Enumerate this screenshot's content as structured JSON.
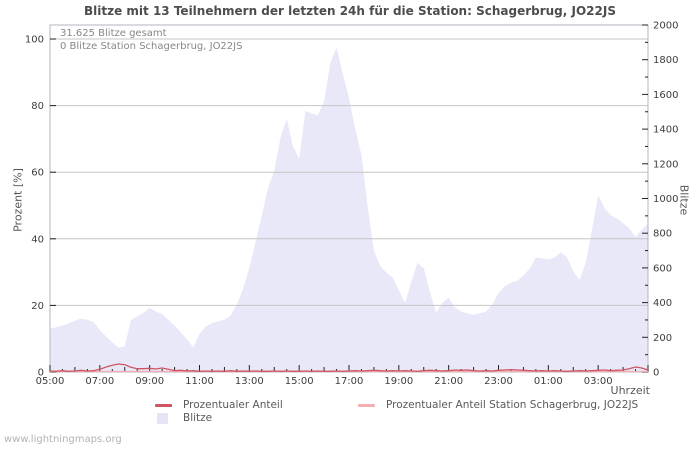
{
  "page": {
    "watermark": "www.lightningmaps.org"
  },
  "chart_data": {
    "type": "area",
    "title": "Blitze mit 13 Teilnehmern der letzten 24h für die Station: Schagerbrug, JO22JS",
    "annotations": [
      "31.625 Blitze gesamt",
      "0 Blitze Station Schagerbrug, JO22JS"
    ],
    "x_axis_label": "Uhrzeit",
    "x_start": "05:00",
    "x_interval_min": 15,
    "x_tick_labels": [
      "05:00",
      "07:00",
      "09:00",
      "11:00",
      "13:00",
      "15:00",
      "17:00",
      "19:00",
      "21:00",
      "23:00",
      "01:00",
      "03:00"
    ],
    "y_left": {
      "label": "Prozent  [%]",
      "range": [
        0,
        100
      ],
      "ticks": [
        0,
        20,
        40,
        60,
        80,
        100
      ]
    },
    "y_right": {
      "label": "Blitze",
      "range": [
        0,
        2000
      ],
      "ticks": [
        0,
        200,
        400,
        600,
        800,
        1000,
        1200,
        1400,
        1600,
        1800,
        2000
      ],
      "minor_step": 100
    },
    "grid": "horizontal-only",
    "legend_position": "bottom-center",
    "colors": {
      "grid": "#c6c6c6",
      "frame": "#b3b3bf",
      "tick_text": "#3d3d3d",
      "axis_tick": "#222222"
    },
    "series": [
      {
        "name": "Blitze",
        "type": "area",
        "axis": "right",
        "color": "#e8e8f8",
        "values": [
          250,
          258,
          268,
          280,
          295,
          308,
          300,
          288,
          242,
          205,
          172,
          140,
          148,
          300,
          320,
          342,
          370,
          348,
          335,
          300,
          268,
          228,
          188,
          142,
          220,
          262,
          282,
          292,
          302,
          325,
          390,
          480,
          600,
          750,
          905,
          1060,
          1160,
          1350,
          1460,
          1300,
          1230,
          1505,
          1490,
          1480,
          1560,
          1780,
          1870,
          1720,
          1580,
          1400,
          1250,
          950,
          700,
          612,
          572,
          545,
          472,
          398,
          520,
          630,
          598,
          460,
          342,
          400,
          428,
          372,
          348,
          338,
          330,
          338,
          348,
          390,
          455,
          495,
          515,
          525,
          555,
          595,
          660,
          655,
          650,
          660,
          690,
          662,
          580,
          532,
          628,
          818,
          1020,
          945,
          903,
          886,
          857,
          828,
          780,
          820,
          858
        ]
      },
      {
        "name": "Prozentualer Anteil",
        "type": "line",
        "axis": "left",
        "color": "#cf5560",
        "values": [
          0.3,
          0.2,
          0.4,
          0.2,
          0.3,
          0.5,
          0.3,
          0.4,
          0.8,
          1.5,
          2.0,
          2.4,
          2.2,
          1.4,
          1.0,
          1.0,
          1.1,
          0.9,
          1.2,
          0.8,
          0.4,
          0.5,
          0.3,
          0.4,
          0.2,
          0.3,
          0.2,
          0.3,
          0.2,
          0.4,
          0.2,
          0.3,
          0.2,
          0.3,
          0.2,
          0.2,
          0.3,
          0.2,
          0.3,
          0.2,
          0.2,
          0.3,
          0.2,
          0.3,
          0.2,
          0.2,
          0.3,
          0.2,
          0.3,
          0.4,
          0.3,
          0.4,
          0.5,
          0.4,
          0.3,
          0.4,
          0.3,
          0.4,
          0.3,
          0.2,
          0.4,
          0.5,
          0.4,
          0.3,
          0.4,
          0.6,
          0.5,
          0.6,
          0.4,
          0.3,
          0.4,
          0.3,
          0.5,
          0.6,
          0.7,
          0.6,
          0.5,
          0.4,
          0.3,
          0.4,
          0.3,
          0.4,
          0.3,
          0.2,
          0.3,
          0.4,
          0.3,
          0.4,
          0.5,
          0.6,
          0.4,
          0.5,
          0.6,
          1.0,
          1.5,
          1.2,
          0.6
        ]
      },
      {
        "name": "Prozentualer Anteil Station Schagerbrug, JO22JS",
        "type": "line",
        "axis": "left",
        "color": "#f3aeb2",
        "values": [
          0,
          0,
          0,
          0,
          0,
          0,
          0,
          0,
          0,
          0,
          0,
          0,
          0,
          0,
          0,
          0,
          0,
          0,
          0,
          0,
          0,
          0,
          0,
          0,
          0,
          0,
          0,
          0,
          0,
          0,
          0,
          0,
          0,
          0,
          0,
          0,
          0,
          0,
          0,
          0,
          0,
          0,
          0,
          0,
          0,
          0,
          0,
          0,
          0,
          0,
          0,
          0,
          0,
          0,
          0,
          0,
          0,
          0,
          0,
          0,
          0,
          0,
          0,
          0,
          0,
          0,
          0,
          0,
          0,
          0,
          0,
          0,
          0,
          0,
          0,
          0,
          0,
          0,
          0,
          0,
          0,
          0,
          0,
          0,
          0,
          0,
          0,
          0,
          0,
          0,
          0,
          0,
          0,
          0,
          0,
          0,
          0
        ]
      }
    ],
    "legend": [
      {
        "label": "Prozentualer Anteil",
        "swatch": "line",
        "color": "#cf5560"
      },
      {
        "label": "Prozentualer Anteil Station Schagerbrug, JO22JS",
        "swatch": "line",
        "color": "#f3aeb2"
      },
      {
        "label": "Blitze",
        "swatch": "box",
        "color": "#e4e4f6"
      }
    ]
  }
}
